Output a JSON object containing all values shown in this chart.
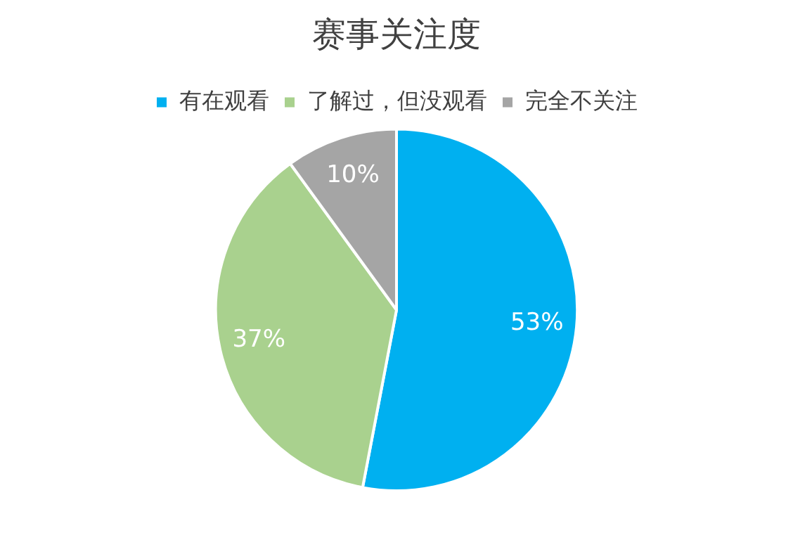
{
  "chart_data": {
    "type": "pie",
    "title": "赛事关注度",
    "categories": [
      "有在观看",
      "了解过，但没观看",
      "完全不关注"
    ],
    "values": [
      53,
      37,
      10
    ],
    "colors": [
      "#00b0f0",
      "#a9d18e",
      "#a5a5a5"
    ],
    "value_labels": [
      "53%",
      "37%",
      "10%"
    ],
    "legend": "top"
  }
}
